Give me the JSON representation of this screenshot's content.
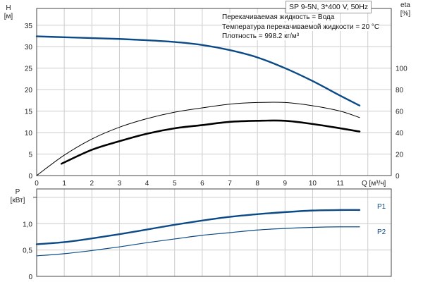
{
  "header": {
    "model": "SP 9-5N, 3*400 V, 50Hz",
    "info": [
      "Перекачиваемая жидкость = Вода",
      "Температура перекачиваемой жидкости = 20 °C",
      "Плотность = 998.2 кг/м³"
    ]
  },
  "colors": {
    "head": "#0b4a86",
    "eta": "#000000",
    "power": "#0b4a86",
    "grid": "#cccccc"
  },
  "chart_data": [
    {
      "type": "line",
      "xlabel": "Q [м³/ч]",
      "ylabel": "H\n[м]",
      "y2label": "eta\n[%]",
      "xlim": [
        0,
        12.85
      ],
      "ylim": [
        0,
        38.9
      ],
      "y2lim": [
        0,
        155.6
      ],
      "xticks": [
        0,
        1,
        2,
        3,
        4,
        5,
        6,
        7,
        8,
        9,
        10,
        11
      ],
      "yticks": [
        0,
        5,
        10,
        15,
        20,
        25,
        30,
        35
      ],
      "y2ticks": [
        0,
        20,
        40,
        60,
        80,
        100
      ],
      "grid": true,
      "series": [
        {
          "axis": "H",
          "style": "thick-blue",
          "x": [
            0,
            1,
            2,
            3,
            4,
            5,
            6,
            7,
            8,
            9,
            10,
            11,
            11.7
          ],
          "y": [
            32.4,
            32.2,
            32.0,
            31.8,
            31.5,
            31.1,
            30.4,
            29.2,
            27.5,
            25.0,
            22.0,
            18.6,
            16.3
          ]
        },
        {
          "axis": "eta",
          "style": "thin-black",
          "x": [
            0,
            1,
            2,
            3,
            4,
            5,
            6,
            7,
            8,
            9,
            10,
            11,
            11.7
          ],
          "y": [
            0,
            19,
            34,
            45,
            53,
            59,
            63,
            66.5,
            68,
            68,
            65,
            60,
            54
          ]
        },
        {
          "axis": "eta",
          "style": "thick-black",
          "x": [
            0.9,
            2,
            3,
            4,
            5,
            6,
            7,
            8,
            9,
            10,
            11,
            11.7
          ],
          "y": [
            11,
            24,
            32,
            39,
            44,
            47,
            50,
            51,
            51,
            48,
            44,
            41
          ]
        }
      ]
    },
    {
      "type": "line",
      "ylabel": "P\n[кВт]",
      "xlim": [
        0,
        12.85
      ],
      "ylim": [
        0,
        1.66
      ],
      "yticks": [
        0,
        0.5,
        1.0
      ],
      "ytick_labels": [
        "0",
        "0,5",
        "1,0"
      ],
      "grid": true,
      "series": [
        {
          "name": "P1",
          "style": "thick-blue",
          "x": [
            0,
            1,
            2,
            3,
            4,
            5,
            6,
            7,
            8,
            9,
            10,
            11,
            11.7
          ],
          "y": [
            0.61,
            0.65,
            0.72,
            0.8,
            0.89,
            0.98,
            1.06,
            1.13,
            1.18,
            1.22,
            1.25,
            1.26,
            1.26
          ]
        },
        {
          "name": "P2",
          "style": "thin-blue",
          "x": [
            0,
            1,
            2,
            3,
            4,
            5,
            6,
            7,
            8,
            9,
            10,
            11,
            11.7
          ],
          "y": [
            0.39,
            0.43,
            0.49,
            0.56,
            0.64,
            0.71,
            0.78,
            0.83,
            0.88,
            0.91,
            0.93,
            0.94,
            0.94
          ]
        }
      ]
    }
  ]
}
